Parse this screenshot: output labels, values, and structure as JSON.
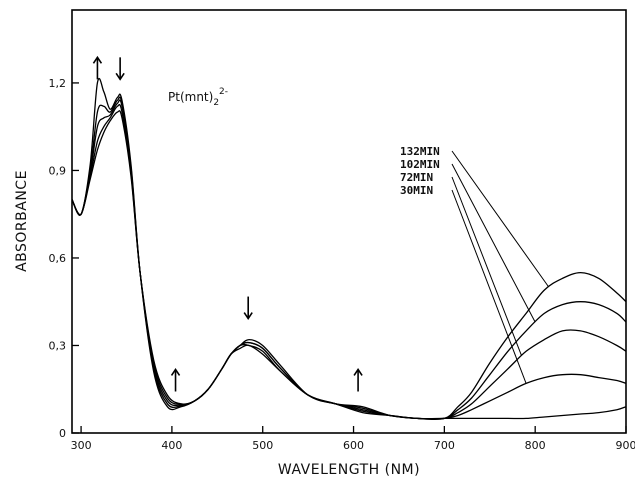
{
  "chart_data": {
    "type": "line",
    "xlabel": "WAVELENGTH  (NM)",
    "ylabel": "ABSORBANCE",
    "xlim": [
      290,
      900
    ],
    "ylim": [
      0,
      1.45
    ],
    "x_ticks": [
      300,
      400,
      500,
      600,
      700,
      800,
      900
    ],
    "y_ticks": [
      0,
      0.3,
      0.6,
      0.9,
      1.2
    ],
    "y_tick_labels": [
      "0",
      "0,3",
      "0,6",
      "0,9",
      "1,2"
    ],
    "formula": {
      "base": "Pt(mnt)",
      "sub": "2",
      "sup": "2-"
    },
    "arrows": [
      {
        "x": 318,
        "y": 1.25,
        "direction": "up"
      },
      {
        "x": 343,
        "y": 1.25,
        "direction": "down"
      },
      {
        "x": 404,
        "y": 0.18,
        "direction": "up"
      },
      {
        "x": 484,
        "y": 0.43,
        "direction": "down"
      },
      {
        "x": 605,
        "y": 0.18,
        "direction": "up"
      }
    ],
    "annotations": [
      "132MIN",
      "102MIN",
      "72MIN",
      "30MIN"
    ],
    "series": [
      {
        "x": [
          290,
          300,
          310,
          318,
          325,
          332,
          340,
          345,
          355,
          365,
          380,
          395,
          410,
          425,
          440,
          455,
          465,
          475,
          485,
          500,
          520,
          550,
          580,
          610,
          640,
          670,
          700,
          715,
          730,
          750,
          770,
          790,
          810,
          830,
          850,
          870,
          890,
          900
        ],
        "values": [
          0.8,
          0.75,
          0.87,
          0.97,
          1.03,
          1.07,
          1.1,
          1.08,
          0.88,
          0.55,
          0.25,
          0.13,
          0.1,
          0.11,
          0.15,
          0.22,
          0.27,
          0.3,
          0.32,
          0.3,
          0.23,
          0.13,
          0.1,
          0.09,
          0.06,
          0.05,
          0.05,
          0.05,
          0.05,
          0.05,
          0.05,
          0.05,
          0.055,
          0.06,
          0.065,
          0.07,
          0.08,
          0.09
        ]
      },
      {
        "x": [
          290,
          300,
          310,
          318,
          325,
          332,
          340,
          345,
          355,
          365,
          380,
          395,
          410,
          425,
          440,
          455,
          465,
          475,
          485,
          500,
          520,
          550,
          580,
          610,
          640,
          670,
          700,
          715,
          730,
          750,
          770,
          790,
          810,
          830,
          850,
          870,
          890,
          900
        ],
        "values": [
          0.8,
          0.75,
          0.88,
          1.0,
          1.05,
          1.08,
          1.12,
          1.1,
          0.89,
          0.55,
          0.24,
          0.12,
          0.098,
          0.11,
          0.15,
          0.22,
          0.27,
          0.3,
          0.31,
          0.29,
          0.22,
          0.13,
          0.1,
          0.085,
          0.06,
          0.05,
          0.05,
          0.06,
          0.08,
          0.11,
          0.14,
          0.17,
          0.19,
          0.2,
          0.2,
          0.19,
          0.18,
          0.17
        ]
      },
      {
        "x": [
          290,
          300,
          310,
          318,
          325,
          332,
          340,
          345,
          355,
          365,
          380,
          395,
          410,
          425,
          440,
          455,
          465,
          475,
          485,
          500,
          520,
          550,
          580,
          610,
          640,
          670,
          700,
          715,
          730,
          750,
          770,
          790,
          810,
          830,
          850,
          870,
          890,
          900
        ],
        "values": [
          0.8,
          0.75,
          0.89,
          1.05,
          1.08,
          1.09,
          1.13,
          1.12,
          0.9,
          0.55,
          0.23,
          0.11,
          0.096,
          0.11,
          0.15,
          0.22,
          0.27,
          0.3,
          0.31,
          0.29,
          0.22,
          0.13,
          0.1,
          0.08,
          0.06,
          0.05,
          0.05,
          0.07,
          0.1,
          0.16,
          0.22,
          0.28,
          0.32,
          0.35,
          0.35,
          0.33,
          0.3,
          0.28
        ]
      },
      {
        "x": [
          290,
          300,
          310,
          318,
          325,
          332,
          340,
          345,
          355,
          365,
          380,
          395,
          410,
          425,
          440,
          455,
          465,
          475,
          485,
          500,
          520,
          550,
          580,
          610,
          640,
          670,
          700,
          715,
          730,
          750,
          770,
          790,
          810,
          830,
          850,
          870,
          890,
          900
        ],
        "values": [
          0.8,
          0.75,
          0.9,
          1.1,
          1.12,
          1.1,
          1.14,
          1.13,
          0.91,
          0.55,
          0.22,
          0.1,
          0.093,
          0.11,
          0.15,
          0.22,
          0.27,
          0.3,
          0.3,
          0.28,
          0.21,
          0.13,
          0.1,
          0.075,
          0.06,
          0.05,
          0.05,
          0.08,
          0.12,
          0.2,
          0.28,
          0.35,
          0.41,
          0.44,
          0.45,
          0.44,
          0.41,
          0.38
        ]
      },
      {
        "x": [
          290,
          300,
          310,
          318,
          325,
          332,
          340,
          345,
          355,
          365,
          380,
          395,
          410,
          425,
          440,
          455,
          465,
          475,
          485,
          500,
          520,
          550,
          580,
          610,
          640,
          670,
          700,
          715,
          730,
          750,
          770,
          790,
          810,
          830,
          850,
          870,
          890,
          900
        ],
        "values": [
          0.8,
          0.75,
          0.92,
          1.2,
          1.17,
          1.11,
          1.15,
          1.14,
          0.92,
          0.55,
          0.21,
          0.09,
          0.09,
          0.11,
          0.15,
          0.22,
          0.27,
          0.29,
          0.3,
          0.27,
          0.21,
          0.13,
          0.1,
          0.07,
          0.06,
          0.05,
          0.05,
          0.09,
          0.14,
          0.24,
          0.33,
          0.41,
          0.49,
          0.53,
          0.55,
          0.53,
          0.48,
          0.45
        ]
      }
    ]
  }
}
